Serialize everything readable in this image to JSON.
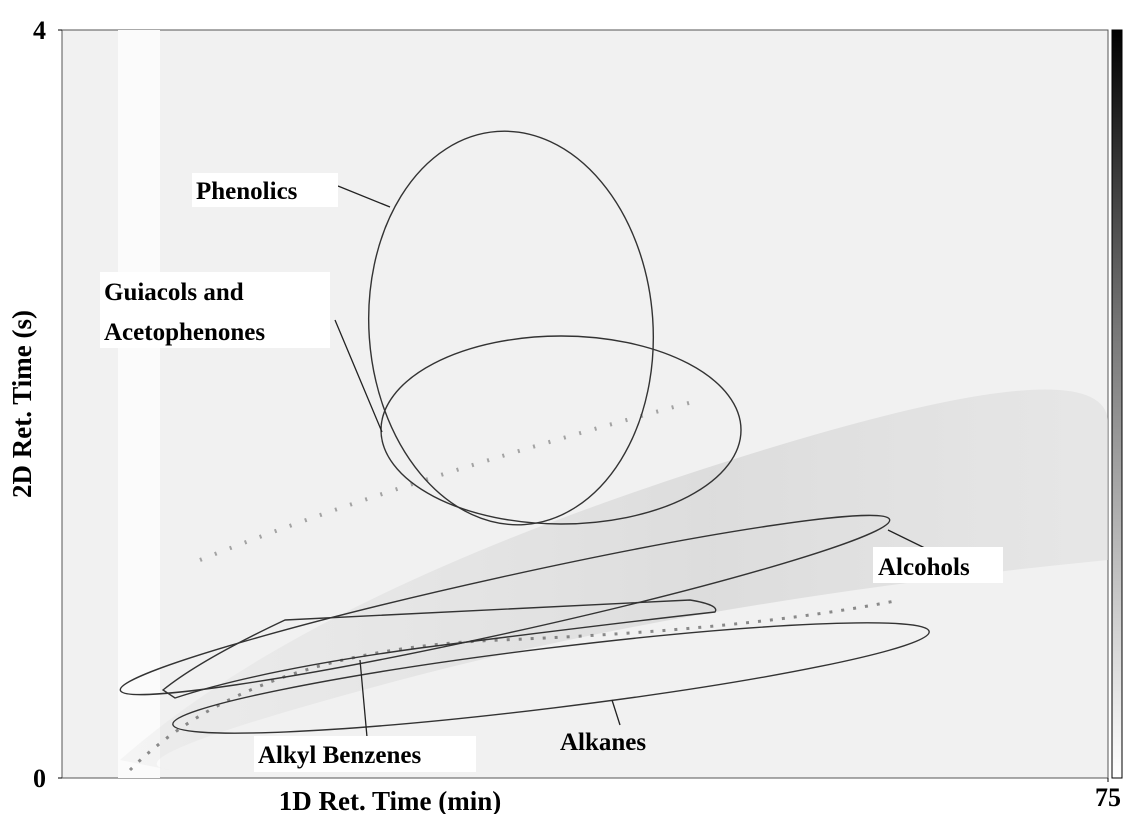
{
  "chart_data": {
    "type": "contour",
    "x_label": "1D Ret. Time (min)",
    "y_label": "2D Ret. Time (s)",
    "xlim": [
      0,
      75
    ],
    "xticks": [
      75
    ],
    "ylim": [
      0,
      4
    ],
    "yticks": [
      0,
      4
    ],
    "annotations": [
      "Phenolics",
      "Guiacols and",
      "Acetophenones",
      "Alcohols",
      "Alkyl Benzenes",
      "Alkanes"
    ]
  }
}
